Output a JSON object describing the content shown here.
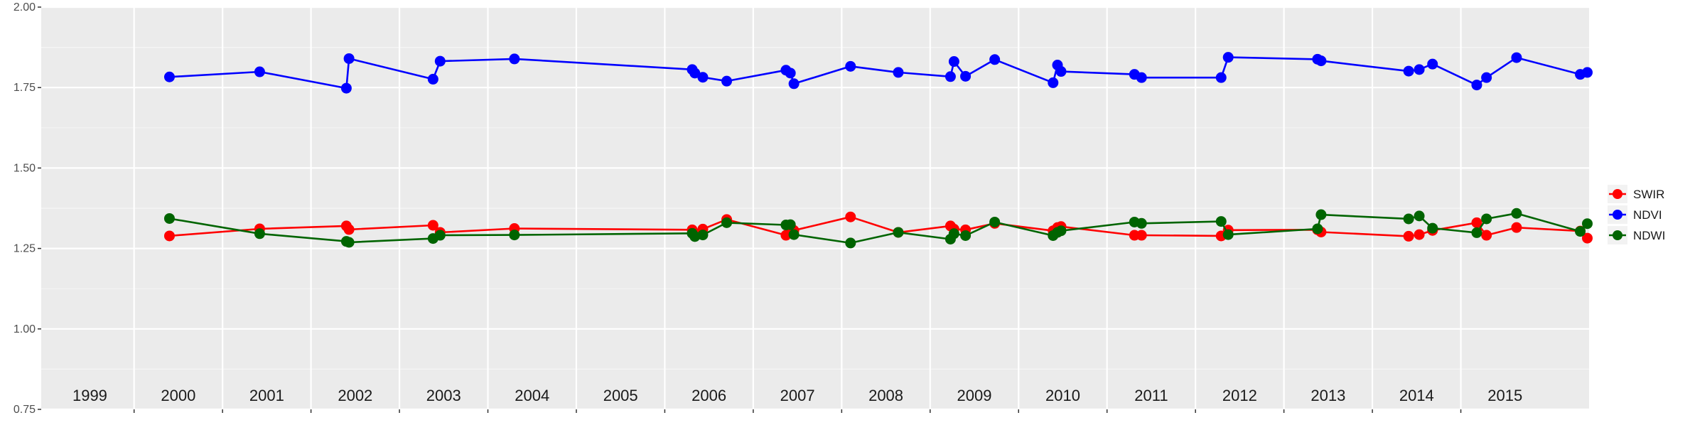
{
  "chart_data": {
    "type": "line",
    "title": "",
    "xlabel": "",
    "ylabel": "",
    "xlim": [
      1998.45,
      2015.95
    ],
    "ylim": [
      0.75,
      2.0
    ],
    "yticks": [
      0.75,
      1.0,
      1.25,
      1.5,
      1.75,
      2.0
    ],
    "ytick_labels": [
      "0.75",
      "1.00",
      "1.25",
      "1.50",
      "1.75",
      "2.00"
    ],
    "year_labels": [
      1999,
      2000,
      2001,
      2002,
      2003,
      2004,
      2005,
      2006,
      2007,
      2008,
      2009,
      2010,
      2011,
      2012,
      2013,
      2014,
      2015
    ],
    "grid": true,
    "legend_position": "right",
    "series": [
      {
        "name": "SWIR",
        "color": "#ff0000",
        "x": [
          1999.9,
          2000.92,
          2001.9,
          2001.93,
          2002.88,
          2002.96,
          2003.8,
          2005.81,
          2005.84,
          2005.93,
          2006.2,
          2006.87,
          2006.92,
          2006.96,
          2007.6,
          2008.14,
          2008.73,
          2008.77,
          2008.9,
          2009.23,
          2009.89,
          2009.94,
          2009.98,
          2010.81,
          2010.89,
          2011.79,
          2011.87,
          2012.88,
          2012.92,
          2013.91,
          2014.03,
          2014.18,
          2014.68,
          2014.79,
          2015.13,
          2015.85,
          2015.93
        ],
        "y": [
          1.289,
          1.311,
          1.32,
          1.309,
          1.322,
          1.3,
          1.312,
          1.308,
          1.296,
          1.31,
          1.34,
          1.291,
          1.313,
          1.306,
          1.348,
          1.3,
          1.32,
          1.31,
          1.308,
          1.328,
          1.305,
          1.315,
          1.318,
          1.291,
          1.291,
          1.289,
          1.307,
          1.308,
          1.301,
          1.288,
          1.293,
          1.306,
          1.33,
          1.291,
          1.315,
          1.304,
          1.282
        ]
      },
      {
        "name": "NDVI",
        "color": "#0000ff",
        "x": [
          1999.9,
          2000.92,
          2001.9,
          2001.93,
          2002.88,
          2002.96,
          2003.8,
          2005.81,
          2005.84,
          2005.93,
          2006.2,
          2006.87,
          2006.92,
          2006.96,
          2007.6,
          2008.14,
          2008.73,
          2008.77,
          2008.9,
          2009.23,
          2009.89,
          2009.94,
          2009.98,
          2010.81,
          2010.89,
          2011.79,
          2011.87,
          2012.88,
          2012.92,
          2013.91,
          2014.03,
          2014.18,
          2014.68,
          2014.79,
          2015.13,
          2015.85,
          2015.93
        ],
        "y": [
          1.783,
          1.799,
          1.748,
          1.84,
          1.776,
          1.832,
          1.839,
          1.806,
          1.795,
          1.782,
          1.77,
          1.804,
          1.795,
          1.762,
          1.816,
          1.797,
          1.784,
          1.831,
          1.785,
          1.837,
          1.765,
          1.82,
          1.8,
          1.791,
          1.781,
          1.781,
          1.844,
          1.838,
          1.833,
          1.801,
          1.806,
          1.823,
          1.758,
          1.781,
          1.843,
          1.791,
          1.797
        ]
      },
      {
        "name": "NDWI",
        "color": "#006400",
        "x": [
          1999.9,
          2000.92,
          2001.9,
          2001.93,
          2002.88,
          2002.96,
          2003.8,
          2005.81,
          2005.84,
          2005.93,
          2006.2,
          2006.87,
          2006.92,
          2006.96,
          2007.6,
          2008.14,
          2008.73,
          2008.77,
          2008.9,
          2009.23,
          2009.89,
          2009.94,
          2009.98,
          2010.81,
          2010.89,
          2011.79,
          2011.87,
          2012.88,
          2012.92,
          2013.91,
          2014.03,
          2014.18,
          2014.68,
          2014.79,
          2015.13,
          2015.85,
          2015.93
        ],
        "y": [
          1.343,
          1.296,
          1.272,
          1.269,
          1.281,
          1.291,
          1.292,
          1.297,
          1.287,
          1.292,
          1.33,
          1.323,
          1.324,
          1.293,
          1.267,
          1.3,
          1.279,
          1.296,
          1.29,
          1.332,
          1.29,
          1.3,
          1.305,
          1.332,
          1.328,
          1.334,
          1.293,
          1.311,
          1.355,
          1.342,
          1.351,
          1.313,
          1.299,
          1.342,
          1.359,
          1.303,
          1.327
        ]
      }
    ]
  }
}
